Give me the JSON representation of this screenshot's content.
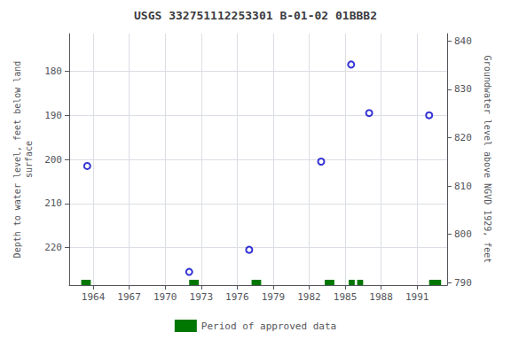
{
  "chart_data": {
    "type": "scatter",
    "title": "USGS 332751112253301 B-01-02 01BBB2",
    "ylabel": "Depth to water level, feet below land\nsurface",
    "y2label": "Groundwater level above NGVD 1929, feet",
    "xlim": [
      1962.0,
      1993.5
    ],
    "xticks": [
      1964,
      1967,
      1970,
      1973,
      1976,
      1979,
      1982,
      1985,
      1988,
      1991
    ],
    "ylim": [
      228.5,
      171.5
    ],
    "yticks": [
      180,
      190,
      200,
      210,
      220
    ],
    "y2lim": [
      789.5,
      841.5
    ],
    "y2ticks": [
      790,
      800,
      810,
      820,
      830,
      840
    ],
    "grid": true,
    "legend": "bottom",
    "series": [
      {
        "type": "scatter",
        "color": "#0000cc",
        "marker": "open circle",
        "x": [
          1963.5,
          1972.0,
          1977.0,
          1983.0,
          1985.5,
          1987.0,
          1992.0
        ],
        "values": [
          201.5,
          225.5,
          220.5,
          200.5,
          178.5,
          189.5,
          190.0
        ]
      },
      {
        "type": "span",
        "name": "Period of approved data",
        "color": "#007700",
        "segments": [
          [
            1963.0,
            1963.8
          ],
          [
            1972.0,
            1972.8
          ],
          [
            1977.2,
            1978.0
          ],
          [
            1983.3,
            1984.1
          ],
          [
            1985.3,
            1985.8
          ],
          [
            1986.0,
            1986.5
          ],
          [
            1992.0,
            1993.0
          ]
        ]
      }
    ]
  }
}
